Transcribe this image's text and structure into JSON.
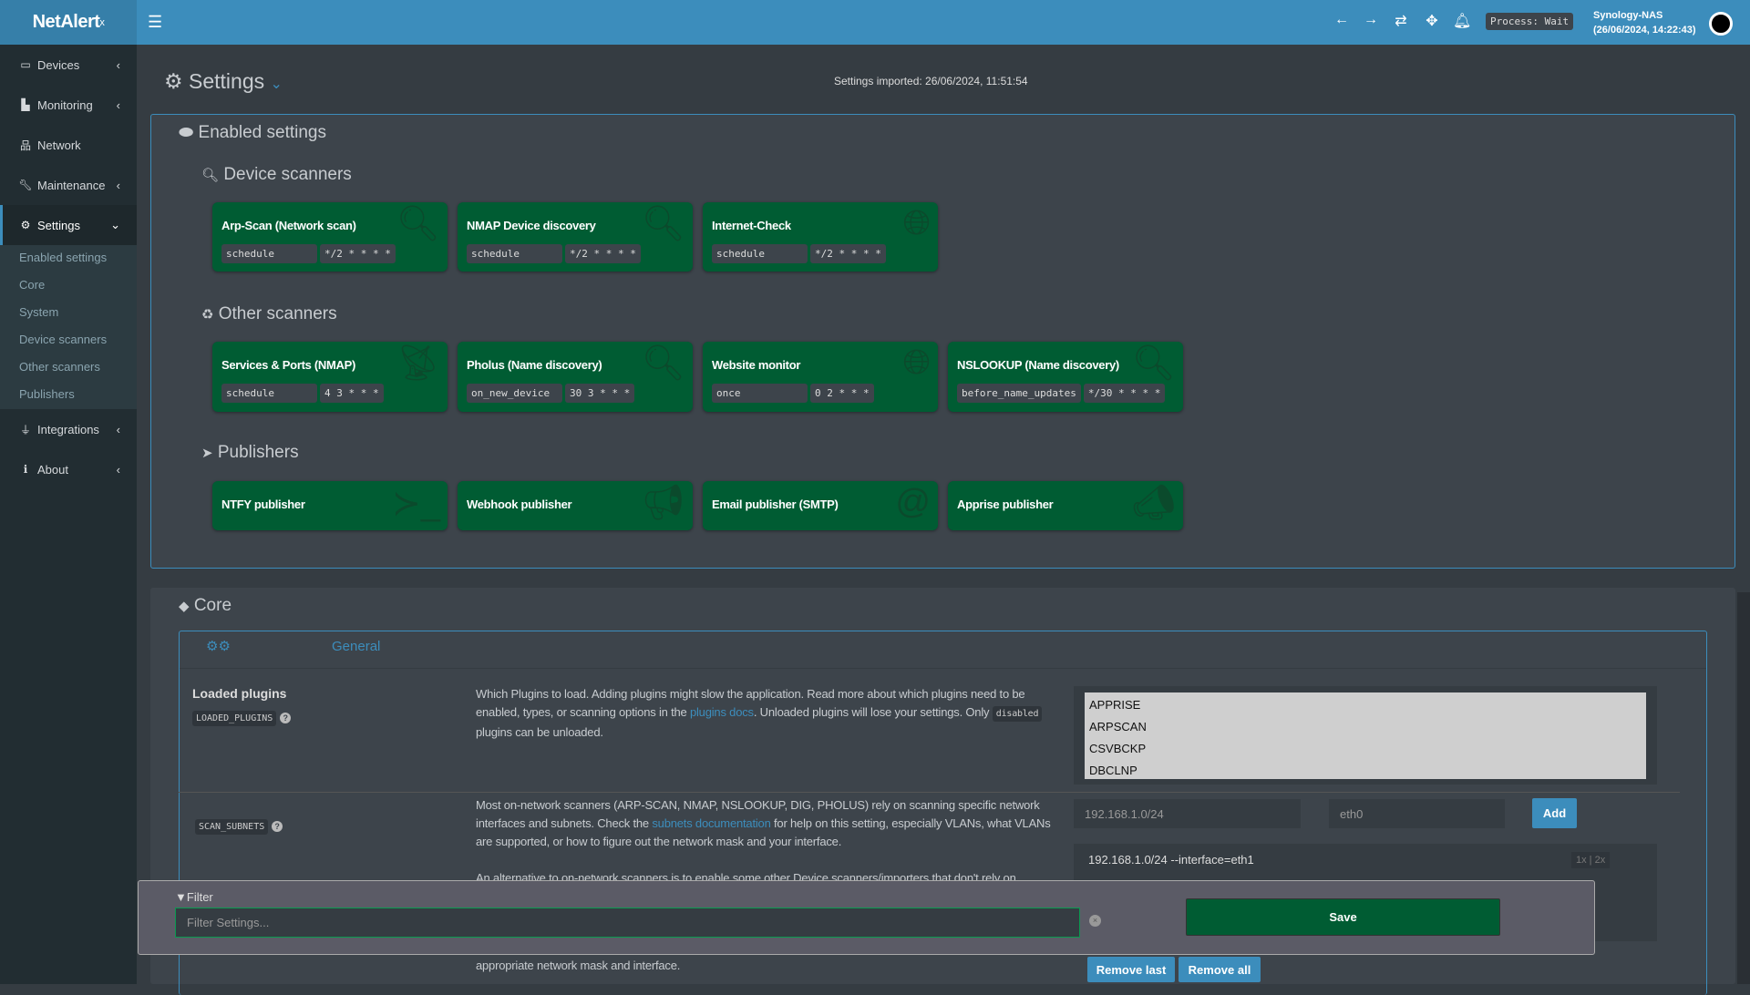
{
  "app": {
    "logo": "NetAlert",
    "logo_sup": "x",
    "process_status": "Process: Wait",
    "host": "Synology-NAS",
    "host_time": "(26/06/2024, 14:22:43)"
  },
  "colors": {
    "header": "#3c8dbc",
    "sidebar": "#222d32",
    "card": "#005c33",
    "accent": "#3c8dbc",
    "save": "#005c33"
  },
  "sidebar": {
    "items": [
      {
        "label": "Devices",
        "icon": "laptop-icon"
      },
      {
        "label": "Monitoring",
        "icon": "chart-icon"
      },
      {
        "label": "Network",
        "icon": "sitemap-icon"
      },
      {
        "label": "Maintenance",
        "icon": "wrench-icon"
      },
      {
        "label": "Settings",
        "icon": "gear-icon"
      },
      {
        "label": "Integrations",
        "icon": "plug-icon"
      },
      {
        "label": "About",
        "icon": "info-icon"
      }
    ],
    "submenu": [
      "Enabled settings",
      "Core",
      "System",
      "Device scanners",
      "Other scanners",
      "Publishers"
    ]
  },
  "page": {
    "title": "Settings",
    "imported": "Settings imported: 26/06/2024, 11:51:54"
  },
  "enabled": {
    "title": "Enabled settings",
    "device_scanners": {
      "title": "Device scanners",
      "cards": [
        {
          "name": "Arp-Scan (Network scan)",
          "k": "schedule",
          "v": "*/2 * * * *",
          "icon": "search-icon"
        },
        {
          "name": "NMAP Device discovery",
          "k": "schedule",
          "v": "*/2 * * * *",
          "icon": "search-icon"
        },
        {
          "name": "Internet-Check",
          "k": "schedule",
          "v": "*/2 * * * *",
          "icon": "globe-icon"
        }
      ]
    },
    "other_scanners": {
      "title": "Other scanners",
      "cards": [
        {
          "name": "Services & Ports (NMAP)",
          "k": "schedule",
          "v": "4 3 * * *",
          "icon": "satellite-icon"
        },
        {
          "name": "Pholus (Name discovery)",
          "k": "on_new_device",
          "v": "30 3 * * *",
          "icon": "search-icon"
        },
        {
          "name": "Website monitor",
          "k": "once",
          "v": "0 2 * * *",
          "icon": "globe-icon"
        },
        {
          "name": "NSLOOKUP (Name discovery)",
          "k": "before_name_updates",
          "v": "*/30 * * * *",
          "icon": "search-icon"
        }
      ]
    },
    "publishers": {
      "title": "Publishers",
      "cards": [
        {
          "name": "NTFY publisher",
          "icon": "terminal-icon"
        },
        {
          "name": "Webhook publisher",
          "icon": "megaphone-icon"
        },
        {
          "name": "Email publisher (SMTP)",
          "icon": "at-icon"
        },
        {
          "name": "Apprise publisher",
          "icon": "bullhorn-icon"
        }
      ]
    }
  },
  "core": {
    "title": "Core",
    "tab": "General",
    "loaded_plugins": {
      "label": "Loaded plugins",
      "code": "LOADED_PLUGINS",
      "d1": "Which Plugins to load. Adding plugins might slow the application. Read more about which plugins need to be enabled, types, or scanning options in the ",
      "link": "plugins docs",
      "d2": ". Unloaded plugins will lose your settings. Only ",
      "code2": "disabled",
      "d3": " plugins can be unloaded.",
      "options": [
        "APPRISE",
        "ARPSCAN",
        "CSVBCKP",
        "DBCLNP"
      ]
    },
    "scan_subnets": {
      "code": "SCAN_SUBNETS",
      "d1": "Most on-network scanners (ARP-SCAN, NMAP, NSLOOKUP, DIG, PHOLUS) rely on scanning specific network interfaces and subnets. Check the ",
      "link": "subnets documentation",
      "d2": " for help on this setting, especially VLANs, what VLANs are supported, or how to figure out the network mask and your interface.",
      "d4": "An alternative to on-network scanners is to enable some other Device scanners/importers that don't rely on",
      "d5": "appropriate network mask and interface.",
      "subnet_placeholder": "192.168.1.0/24",
      "iface_placeholder": "eth0",
      "add": "Add",
      "entry": "192.168.1.0/24 --interface=eth1",
      "mini": "1x | 2x",
      "remove_last": "Remove last",
      "remove_all": "Remove all"
    }
  },
  "filter": {
    "label": "Filter",
    "placeholder": "Filter Settings...",
    "save": "Save"
  }
}
